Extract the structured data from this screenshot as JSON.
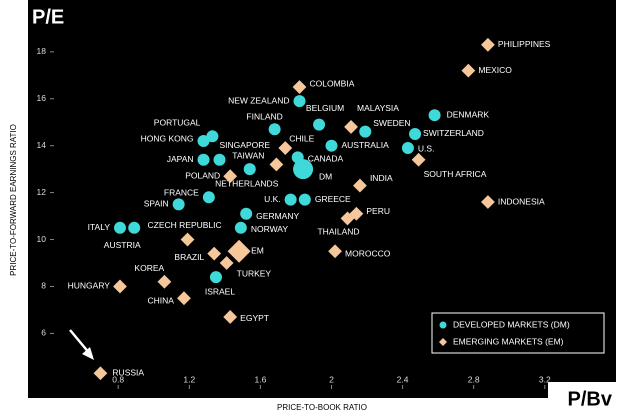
{
  "chart_data": {
    "type": "scatter",
    "title": "P/E",
    "x_label_short": "P/Bv",
    "xlabel": "PRICE-TO-BOOK RATIO",
    "ylabel": "PRICE-TO-FORWARD EARNINGS RATIO",
    "xlim": [
      0.45,
      3.55
    ],
    "ylim": [
      3.8,
      19.4
    ],
    "xticks": [
      0.8,
      1.2,
      1.6,
      2.0,
      2.4,
      2.8,
      3.2
    ],
    "yticks": [
      6,
      8,
      10,
      12,
      14,
      16,
      18
    ],
    "legend_position": "lower right",
    "series": [
      {
        "name": "DEVELOPED MARKETS (DM)",
        "color": "#3fd9d9",
        "marker": "circle",
        "labels": [
          "DENMARK",
          "NEW ZEALAND",
          "BELGIUM",
          "FINLAND",
          "PORTUGAL",
          "HONG KONG",
          "SWEDEN",
          "SWITZERLAND",
          "U.S.",
          "AUSTRALIA",
          "SINGAPORE",
          "JAPAN",
          "CANADA",
          "DM",
          "NETHERLANDS",
          "FRANCE",
          "U.K.",
          "GREECE",
          "SPAIN",
          "GERMANY",
          "NORWAY",
          "ITALY",
          "AUSTRIA",
          "ISRAEL"
        ],
        "x": [
          2.58,
          1.82,
          1.93,
          1.68,
          1.33,
          1.28,
          2.19,
          2.47,
          2.43,
          2.0,
          1.37,
          1.28,
          1.81,
          1.84,
          1.54,
          1.31,
          1.77,
          1.85,
          1.14,
          1.52,
          1.49,
          0.81,
          0.89,
          1.35
        ],
        "values": [
          15.3,
          15.9,
          14.9,
          14.7,
          14.4,
          14.2,
          14.6,
          14.5,
          13.9,
          14.0,
          13.4,
          13.4,
          13.5,
          13.0,
          13.0,
          11.8,
          11.7,
          11.7,
          11.5,
          11.1,
          10.5,
          10.5,
          10.5,
          8.4
        ]
      },
      {
        "name": "EMERGING MARKETS (EM)",
        "color": "#f5c79a",
        "marker": "diamond",
        "labels": [
          "PHILIPPINES",
          "MEXICO",
          "COLOMBIA",
          "MALAYSIA",
          "CHILE",
          "SOUTH AFRICA",
          "POLAND",
          "INDIA",
          "INDONESIA",
          "PERU",
          "THAILAND",
          "TAIWAN",
          "CZECH REPUBLIC",
          "BRAZIL",
          "EM",
          "TURKEY",
          "MOROCCO",
          "KOREA",
          "HUNGARY",
          "CHINA",
          "EGYPT",
          "RUSSIA"
        ],
        "x": [
          2.88,
          2.77,
          1.82,
          2.11,
          1.74,
          2.49,
          1.43,
          2.16,
          2.88,
          2.14,
          2.09,
          1.69,
          1.19,
          1.34,
          1.48,
          1.41,
          2.02,
          1.06,
          0.81,
          1.17,
          1.43,
          0.7
        ],
        "values": [
          18.3,
          17.2,
          16.5,
          14.8,
          13.9,
          13.4,
          12.7,
          12.3,
          11.6,
          11.1,
          10.9,
          13.2,
          10.0,
          9.4,
          9.5,
          9.0,
          9.5,
          8.2,
          8.0,
          7.5,
          6.7,
          4.3
        ]
      }
    ]
  }
}
